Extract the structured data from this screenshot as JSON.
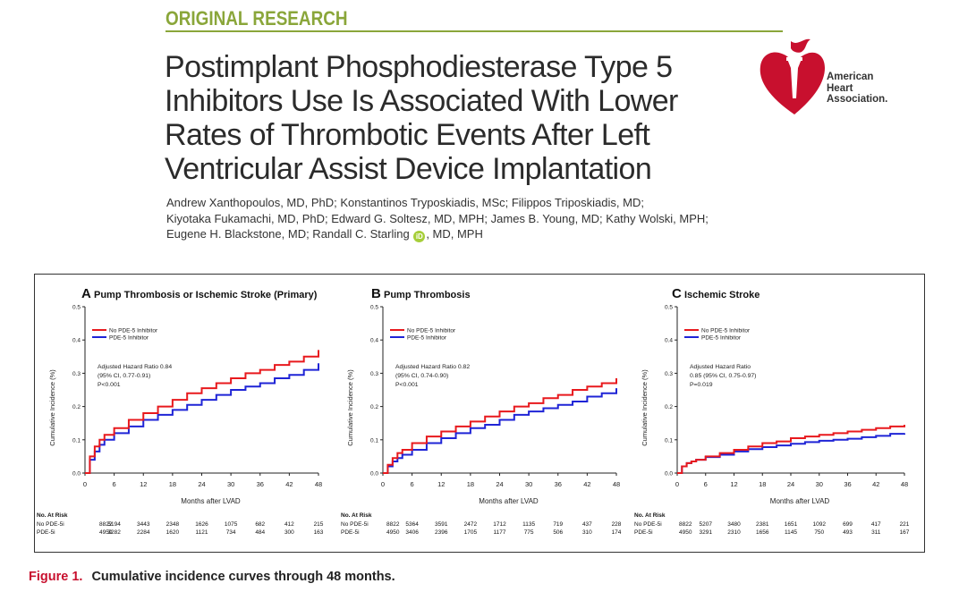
{
  "header": {
    "section_label": "ORIGINAL RESEARCH",
    "title_lines": [
      "Postimplant Phosphodiesterase Type 5",
      "Inhibitors Use Is Associated With Lower",
      "Rates of Thrombotic Events After Left",
      "Ventricular Assist Device Implantation"
    ],
    "author_lines": [
      "Andrew Xanthopoulos, MD, PhD; Konstantinos Tryposkiadis, MSc; Filippos Triposkiadis, MD;",
      "Kiyotaka Fukamachi, MD, PhD; Edward G. Soltesz, MD, MPH; James B. Young, MD; Kathy Wolski, MPH;"
    ],
    "author_last_before": "Eugene H. Blackstone, MD; Randall C. Starling",
    "author_last_after": ", MD, MPH",
    "orcid_icon": "iD"
  },
  "logo": {
    "lines": [
      "American",
      "Heart",
      "Association."
    ],
    "brand_color": "#c8102e"
  },
  "figure": {
    "caption_number": "Figure 1.",
    "caption_text": "Cumulative incidence curves through 48 months.",
    "series_colors": {
      "no_pde5i": "#e8191d",
      "pde5i": "#1f24d6"
    }
  },
  "chart_data": [
    {
      "type": "line",
      "panel_letter": "A",
      "title": "Pump Thrombosis or Ischemic Stroke (Primary)",
      "xlabel": "Months after LVAD",
      "ylabel": "Cumulative Incidence (%)",
      "x_ticks": [
        0,
        6,
        12,
        18,
        24,
        30,
        36,
        42,
        48
      ],
      "y_ticks": [
        "0.0",
        "0.1",
        "0.2",
        "0.3",
        "0.4",
        "0.5"
      ],
      "xlim": [
        0,
        48
      ],
      "ylim": [
        0,
        0.5
      ],
      "legend": [
        "No PDE-5 Inhibitor",
        "PDE-5 Inhibitor"
      ],
      "annotation": [
        "Adjusted Hazard Ratio 0.84",
        "(95% CI, 0.77-0.91)",
        "P<0.001"
      ],
      "series": [
        {
          "name": "No PDE-5 Inhibitor",
          "x": [
            0,
            1,
            2,
            3,
            4,
            6,
            9,
            12,
            15,
            18,
            21,
            24,
            27,
            30,
            33,
            36,
            39,
            42,
            45,
            48
          ],
          "y": [
            0,
            0.05,
            0.08,
            0.1,
            0.115,
            0.135,
            0.16,
            0.18,
            0.2,
            0.22,
            0.24,
            0.255,
            0.27,
            0.285,
            0.3,
            0.31,
            0.325,
            0.335,
            0.35,
            0.37
          ]
        },
        {
          "name": "PDE-5 Inhibitor",
          "x": [
            0,
            1,
            2,
            3,
            4,
            6,
            9,
            12,
            15,
            18,
            21,
            24,
            27,
            30,
            33,
            36,
            39,
            42,
            45,
            48
          ],
          "y": [
            0,
            0.04,
            0.065,
            0.085,
            0.1,
            0.12,
            0.14,
            0.16,
            0.175,
            0.19,
            0.205,
            0.22,
            0.235,
            0.25,
            0.26,
            0.27,
            0.285,
            0.295,
            0.31,
            0.33
          ]
        }
      ],
      "at_risk": {
        "heading": "No. At Risk",
        "rows": [
          {
            "label": "No PDE-5i",
            "values": [
              "8822",
              "5194",
              "3443",
              "2348",
              "1626",
              "1075",
              "682",
              "412",
              "215"
            ]
          },
          {
            "label": "PDE-5i",
            "values": [
              "4950",
              "3282",
              "2284",
              "1620",
              "1121",
              "734",
              "484",
              "300",
              "163"
            ]
          }
        ]
      }
    },
    {
      "type": "line",
      "panel_letter": "B",
      "title": "Pump Thrombosis",
      "xlabel": "Months after LVAD",
      "ylabel": "Cumulative Incidence (%)",
      "x_ticks": [
        0,
        6,
        12,
        18,
        24,
        30,
        36,
        42,
        48
      ],
      "y_ticks": [
        "0.0",
        "0.1",
        "0.2",
        "0.3",
        "0.4",
        "0.5"
      ],
      "xlim": [
        0,
        48
      ],
      "ylim": [
        0,
        0.5
      ],
      "legend": [
        "No PDE-5 Inhibitor",
        "PDE-5 Inhibitor"
      ],
      "annotation": [
        "Adjusted Hazard Ratio 0.82",
        "(95% CI, 0.74-0.90)",
        "P<0.001"
      ],
      "series": [
        {
          "name": "No PDE-5 Inhibitor",
          "x": [
            0,
            1,
            2,
            3,
            4,
            6,
            9,
            12,
            15,
            18,
            21,
            24,
            27,
            30,
            33,
            36,
            39,
            42,
            45,
            48
          ],
          "y": [
            0,
            0.025,
            0.045,
            0.06,
            0.07,
            0.09,
            0.11,
            0.125,
            0.14,
            0.155,
            0.17,
            0.185,
            0.2,
            0.21,
            0.225,
            0.235,
            0.25,
            0.26,
            0.27,
            0.285
          ]
        },
        {
          "name": "PDE-5 Inhibitor",
          "x": [
            0,
            1,
            2,
            3,
            4,
            6,
            9,
            12,
            15,
            18,
            21,
            24,
            27,
            30,
            33,
            36,
            39,
            42,
            45,
            48
          ],
          "y": [
            0,
            0.02,
            0.035,
            0.045,
            0.055,
            0.07,
            0.09,
            0.105,
            0.12,
            0.135,
            0.145,
            0.16,
            0.175,
            0.185,
            0.195,
            0.205,
            0.215,
            0.23,
            0.24,
            0.255
          ]
        }
      ],
      "at_risk": {
        "heading": "No. At Risk",
        "rows": [
          {
            "label": "No PDE-5i",
            "values": [
              "8822",
              "5364",
              "3591",
              "2472",
              "1712",
              "1135",
              "719",
              "437",
              "228"
            ]
          },
          {
            "label": "PDE-5i",
            "values": [
              "4950",
              "3406",
              "2396",
              "1705",
              "1177",
              "775",
              "506",
              "310",
              "174"
            ]
          }
        ]
      }
    },
    {
      "type": "line",
      "panel_letter": "C",
      "title": "Ischemic Stroke",
      "xlabel": "Months after LVAD",
      "ylabel": "Cumulative Incidence (%)",
      "x_ticks": [
        0,
        6,
        12,
        18,
        24,
        30,
        36,
        42,
        48
      ],
      "y_ticks": [
        "0.0",
        "0.1",
        "0.2",
        "0.3",
        "0.4",
        "0.5"
      ],
      "xlim": [
        0,
        48
      ],
      "ylim": [
        0,
        0.5
      ],
      "legend": [
        "No PDE-5 Inhibitor",
        "PDE-5 Inhibitor"
      ],
      "annotation": [
        "Adjusted Hazard Ratio",
        "0.85 (95% CI, 0.75-0.97)",
        "P=0.019"
      ],
      "series": [
        {
          "name": "No PDE-5 Inhibitor",
          "x": [
            0,
            1,
            2,
            3,
            4,
            6,
            9,
            12,
            15,
            18,
            21,
            24,
            27,
            30,
            33,
            36,
            39,
            42,
            45,
            48
          ],
          "y": [
            0,
            0.02,
            0.03,
            0.035,
            0.04,
            0.05,
            0.06,
            0.07,
            0.08,
            0.09,
            0.095,
            0.105,
            0.11,
            0.115,
            0.12,
            0.125,
            0.13,
            0.135,
            0.14,
            0.145
          ]
        },
        {
          "name": "PDE-5 Inhibitor",
          "x": [
            0,
            1,
            2,
            3,
            4,
            6,
            9,
            12,
            15,
            18,
            21,
            24,
            27,
            30,
            33,
            36,
            39,
            42,
            45,
            48
          ],
          "y": [
            0,
            0.02,
            0.03,
            0.035,
            0.04,
            0.048,
            0.055,
            0.065,
            0.072,
            0.078,
            0.083,
            0.088,
            0.093,
            0.097,
            0.1,
            0.103,
            0.108,
            0.112,
            0.118,
            0.12
          ]
        }
      ],
      "at_risk": {
        "heading": "No. At Risk",
        "rows": [
          {
            "label": "No PDE-5i",
            "values": [
              "8822",
              "5207",
              "3480",
              "2381",
              "1651",
              "1092",
              "699",
              "417",
              "221"
            ]
          },
          {
            "label": "PDE-5i",
            "values": [
              "4950",
              "3291",
              "2310",
              "1656",
              "1145",
              "750",
              "493",
              "311",
              "167"
            ]
          }
        ]
      }
    }
  ]
}
